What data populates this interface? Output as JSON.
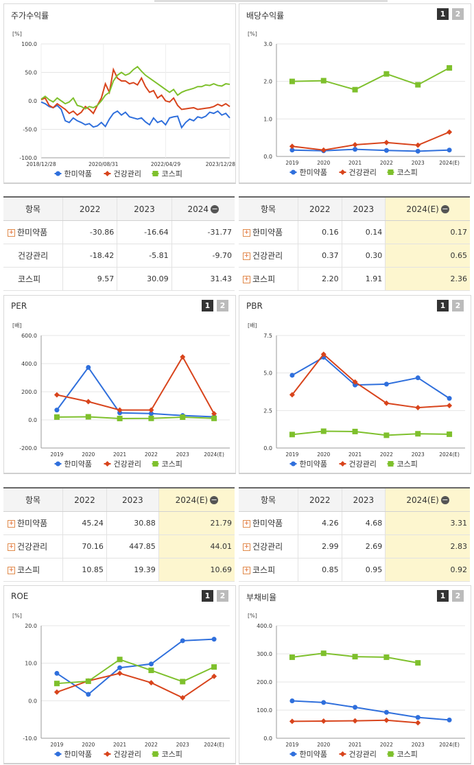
{
  "colors": {
    "hanmi": "#2f6fdc",
    "health": "#d8441c",
    "kospi": "#7ec02c"
  },
  "legend": {
    "hanmi": "한미약품",
    "health": "건강관리",
    "kospi": "코스피"
  },
  "panels": [
    {
      "id": "stock",
      "title": "주가수익률",
      "unit": "[%]",
      "buttons": false
    },
    {
      "id": "div",
      "title": "배당수익률",
      "unit": "[%]",
      "buttons": true
    },
    {
      "id": "per",
      "title": "PER",
      "unit": "[배]",
      "buttons": true
    },
    {
      "id": "pbr",
      "title": "PBR",
      "unit": "[배]",
      "buttons": true
    },
    {
      "id": "roe",
      "title": "ROE",
      "unit": "[%]",
      "buttons": true
    },
    {
      "id": "debt",
      "title": "부채비율",
      "unit": "[%]",
      "buttons": true
    }
  ],
  "buttons": {
    "b1": "1",
    "b2": "2"
  },
  "chart_data": [
    {
      "id": "stock",
      "type": "line",
      "title": "주가수익률",
      "ylabel": "[%]",
      "ylim": [
        -100,
        100
      ],
      "yticks": [
        "100.0",
        "50.0",
        "0.0",
        "-50.0",
        "-100.0"
      ],
      "xticks": [
        "2018/12/28",
        "2020/08/31",
        "2022/04/29",
        "2023/12/28"
      ],
      "series": [
        {
          "name": "한미약품",
          "values": [
            -2,
            -5,
            -10,
            -12,
            -8,
            -15,
            -35,
            -38,
            -30,
            -35,
            -38,
            -42,
            -40,
            -46,
            -44,
            -38,
            -45,
            -32,
            -22,
            -18,
            -25,
            -20,
            -28,
            -30,
            -32,
            -30,
            -37,
            -42,
            -30,
            -38,
            -35,
            -42,
            -30,
            -28,
            -27,
            -47,
            -38,
            -32,
            -35,
            -28,
            -30,
            -27,
            -20,
            -22,
            -18,
            -25,
            -22,
            -30
          ]
        },
        {
          "name": "건강관리",
          "values": [
            2,
            5,
            -8,
            -12,
            -5,
            -10,
            -15,
            -22,
            -18,
            -25,
            -20,
            -10,
            -15,
            -22,
            -8,
            5,
            30,
            15,
            55,
            40,
            35,
            35,
            30,
            32,
            28,
            40,
            25,
            15,
            18,
            5,
            10,
            0,
            -2,
            5,
            -8,
            -15,
            -14,
            -13,
            -12,
            -15,
            -14,
            -13,
            -12,
            -10,
            -6,
            -9,
            -5,
            -10
          ]
        },
        {
          "name": "코스피",
          "values": [
            3,
            8,
            2,
            -2,
            5,
            0,
            -5,
            -2,
            5,
            -8,
            -10,
            -14,
            -10,
            -12,
            -8,
            0,
            10,
            15,
            35,
            45,
            50,
            45,
            48,
            55,
            60,
            52,
            45,
            40,
            35,
            30,
            25,
            20,
            15,
            20,
            10,
            15,
            18,
            20,
            22,
            25,
            25,
            28,
            27,
            30,
            27,
            26,
            30,
            29
          ]
        }
      ]
    },
    {
      "id": "div",
      "type": "line",
      "title": "배당수익률",
      "ylabel": "[%]",
      "ylim": [
        0,
        3
      ],
      "yticks": [
        "3.0",
        "2.0",
        "1.0",
        "0.0"
      ],
      "categories": [
        "2019",
        "2020",
        "2021",
        "2022",
        "2023",
        "2024(E)"
      ],
      "series": [
        {
          "name": "한미약품",
          "values": [
            0.17,
            0.15,
            0.19,
            0.16,
            0.14,
            0.17
          ]
        },
        {
          "name": "건강관리",
          "values": [
            0.27,
            0.17,
            0.31,
            0.37,
            0.3,
            0.65
          ]
        },
        {
          "name": "코스피",
          "values": [
            2.0,
            2.02,
            1.78,
            2.2,
            1.91,
            2.36
          ]
        }
      ]
    },
    {
      "id": "per",
      "type": "line",
      "title": "PER",
      "ylabel": "[배]",
      "ylim": [
        -200,
        600
      ],
      "yticks": [
        "600.0",
        "400.0",
        "200.0",
        "0.0",
        "-200.0"
      ],
      "categories": [
        "2019",
        "2020",
        "2021",
        "2022",
        "2023",
        "2024(E)"
      ],
      "series": [
        {
          "name": "한미약품",
          "values": [
            70,
            373,
            50,
            45.24,
            30.88,
            21.79
          ]
        },
        {
          "name": "건강관리",
          "values": [
            178,
            130,
            70,
            70.16,
            447.85,
            44.01
          ]
        },
        {
          "name": "코스피",
          "values": [
            20,
            22,
            10,
            10.85,
            19.39,
            10.69
          ]
        }
      ]
    },
    {
      "id": "pbr",
      "type": "line",
      "title": "PBR",
      "ylabel": "[배]",
      "ylim": [
        0,
        7.5
      ],
      "yticks": [
        "7.5",
        "5.0",
        "2.5",
        "0.0"
      ],
      "categories": [
        "2019",
        "2020",
        "2021",
        "2022",
        "2023",
        "2024(E)"
      ],
      "series": [
        {
          "name": "한미약품",
          "values": [
            4.85,
            6.05,
            4.2,
            4.26,
            4.68,
            3.31
          ]
        },
        {
          "name": "건강관리",
          "values": [
            3.55,
            6.25,
            4.4,
            2.99,
            2.69,
            2.83
          ]
        },
        {
          "name": "코스피",
          "values": [
            0.9,
            1.12,
            1.1,
            0.85,
            0.95,
            0.92
          ]
        }
      ]
    },
    {
      "id": "roe",
      "type": "line",
      "title": "ROE",
      "ylabel": "[%]",
      "ylim": [
        -10,
        20
      ],
      "yticks": [
        "20.0",
        "10.0",
        "0.0",
        "-10.0"
      ],
      "categories": [
        "2019",
        "2020",
        "2021",
        "2022",
        "2023",
        "2024(E)"
      ],
      "series": [
        {
          "name": "한미약품",
          "values": [
            7.3,
            1.7,
            8.8,
            9.8,
            16.0,
            16.4
          ]
        },
        {
          "name": "건강관리",
          "values": [
            2.3,
            5.3,
            7.3,
            4.8,
            0.8,
            6.5
          ]
        },
        {
          "name": "코스피",
          "values": [
            4.6,
            5.2,
            11.0,
            8.1,
            5.1,
            9.0
          ]
        }
      ]
    },
    {
      "id": "debt",
      "type": "line",
      "title": "부채비율",
      "ylabel": "[%]",
      "ylim": [
        0,
        400
      ],
      "yticks": [
        "400.0",
        "300.0",
        "200.0",
        "100.0",
        "0.0"
      ],
      "categories": [
        "2019",
        "2020",
        "2021",
        "2022",
        "2023",
        "2024(E)"
      ],
      "series": [
        {
          "name": "한미약품",
          "values": [
            133,
            127,
            110,
            92,
            74,
            65
          ]
        },
        {
          "name": "건강관리",
          "values": [
            60,
            61,
            62,
            64,
            55,
            null
          ]
        },
        {
          "name": "코스피",
          "values": [
            288,
            302,
            290,
            288,
            268,
            null
          ]
        }
      ]
    }
  ],
  "tables": [
    {
      "id": "stock",
      "headers": [
        "항목",
        "2022",
        "2023",
        "2024"
      ],
      "hl": false,
      "rows": [
        {
          "label": "한미약품",
          "plus": true,
          "values": [
            "-30.86",
            "-16.64",
            "-31.77"
          ]
        },
        {
          "label": "건강관리",
          "plus": false,
          "values": [
            "-18.42",
            "-5.81",
            "-9.70"
          ]
        },
        {
          "label": "코스피",
          "plus": false,
          "values": [
            "9.57",
            "30.09",
            "31.43"
          ]
        }
      ]
    },
    {
      "id": "div",
      "headers": [
        "항목",
        "2022",
        "2023",
        "2024(E)"
      ],
      "hl": true,
      "rows": [
        {
          "label": "한미약품",
          "plus": true,
          "values": [
            "0.16",
            "0.14",
            "0.17"
          ]
        },
        {
          "label": "건강관리",
          "plus": true,
          "values": [
            "0.37",
            "0.30",
            "0.65"
          ]
        },
        {
          "label": "코스피",
          "plus": true,
          "values": [
            "2.20",
            "1.91",
            "2.36"
          ]
        }
      ]
    },
    {
      "id": "per",
      "headers": [
        "항목",
        "2022",
        "2023",
        "2024(E)"
      ],
      "hl": true,
      "rows": [
        {
          "label": "한미약품",
          "plus": true,
          "values": [
            "45.24",
            "30.88",
            "21.79"
          ]
        },
        {
          "label": "건강관리",
          "plus": true,
          "values": [
            "70.16",
            "447.85",
            "44.01"
          ]
        },
        {
          "label": "코스피",
          "plus": true,
          "values": [
            "10.85",
            "19.39",
            "10.69"
          ]
        }
      ]
    },
    {
      "id": "pbr",
      "headers": [
        "항목",
        "2022",
        "2023",
        "2024(E)"
      ],
      "hl": true,
      "rows": [
        {
          "label": "한미약품",
          "plus": true,
          "values": [
            "4.26",
            "4.68",
            "3.31"
          ]
        },
        {
          "label": "건강관리",
          "plus": true,
          "values": [
            "2.99",
            "2.69",
            "2.83"
          ]
        },
        {
          "label": "코스피",
          "plus": true,
          "values": [
            "0.85",
            "0.95",
            "0.92"
          ]
        }
      ]
    }
  ]
}
